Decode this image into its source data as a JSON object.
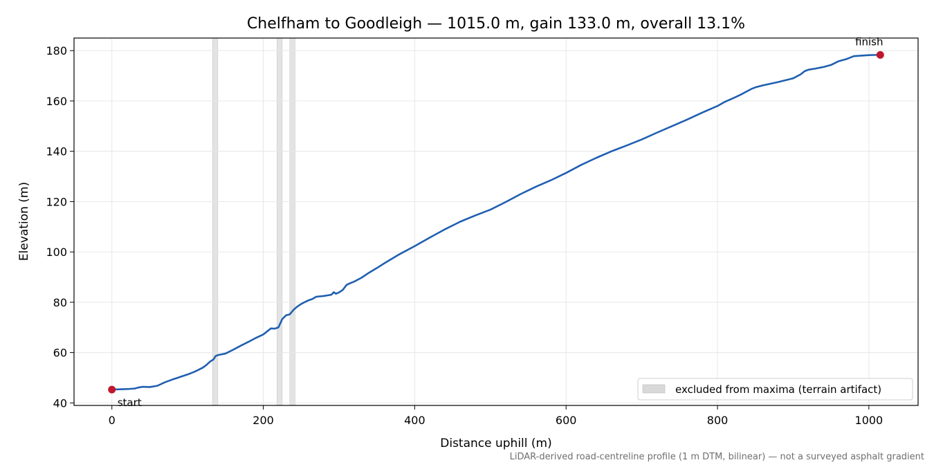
{
  "chart_data": {
    "type": "line",
    "title": "Chelfham to Goodleigh — 1015.0 m, gain 133.0 m, overall 13.1%",
    "xlabel": "Distance uphill (m)",
    "ylabel": "Elevation (m)",
    "xlim": [
      -50,
      1065
    ],
    "ylim": [
      39,
      185
    ],
    "xticks": [
      0,
      200,
      400,
      600,
      800,
      1000
    ],
    "yticks": [
      40,
      60,
      80,
      100,
      120,
      140,
      160,
      180
    ],
    "grid": true,
    "series": [
      {
        "color": "#1f5fb0",
        "x": [
          0,
          10,
          20,
          30,
          35,
          40,
          50,
          60,
          70,
          80,
          90,
          100,
          110,
          120,
          125,
          130,
          134,
          137,
          140,
          150,
          160,
          170,
          180,
          190,
          200,
          205,
          210,
          215,
          220,
          225,
          230,
          235,
          240,
          245,
          250,
          255,
          260,
          265,
          270,
          280,
          290,
          293,
          296,
          300,
          305,
          310,
          315,
          320,
          330,
          340,
          350,
          360,
          380,
          400,
          420,
          440,
          460,
          480,
          500,
          520,
          540,
          560,
          580,
          600,
          620,
          640,
          660,
          680,
          700,
          720,
          740,
          760,
          780,
          800,
          810,
          820,
          830,
          840,
          845,
          850,
          860,
          880,
          900,
          910,
          915,
          920,
          930,
          940,
          950,
          960,
          970,
          980,
          990,
          1000,
          1010,
          1015
        ],
        "y": [
          45.3,
          45.4,
          45.5,
          45.7,
          46.1,
          46.4,
          46.3,
          46.8,
          48.2,
          49.3,
          50.3,
          51.3,
          52.5,
          54.0,
          55.1,
          56.5,
          57.2,
          58.6,
          59.0,
          59.6,
          61.1,
          62.7,
          64.2,
          65.8,
          67.2,
          68.4,
          69.6,
          69.5,
          70.0,
          73.3,
          74.8,
          75.2,
          77.0,
          78.3,
          79.3,
          80.1,
          80.8,
          81.3,
          82.2,
          82.5,
          83.0,
          84.0,
          83.4,
          83.9,
          84.9,
          86.9,
          87.6,
          88.2,
          89.8,
          91.8,
          93.6,
          95.5,
          99.1,
          102.3,
          105.7,
          109.0,
          112.0,
          114.5,
          116.8,
          119.8,
          123.0,
          125.9,
          128.5,
          131.4,
          134.6,
          137.4,
          140.0,
          142.3,
          144.7,
          147.4,
          150.0,
          152.6,
          155.4,
          158.0,
          159.7,
          161.0,
          162.4,
          164.0,
          164.8,
          165.4,
          166.2,
          167.5,
          169.0,
          170.6,
          171.8,
          172.4,
          172.9,
          173.5,
          174.3,
          175.8,
          176.6,
          177.8,
          178.0,
          178.2,
          178.3,
          178.3
        ]
      }
    ],
    "excluded_bands": [
      [
        133,
        140
      ],
      [
        218,
        225
      ],
      [
        235,
        242
      ]
    ],
    "points": [
      {
        "label": "start",
        "x": 0,
        "y": 45.3,
        "color": "#c0162f"
      },
      {
        "label": "finish",
        "x": 1015,
        "y": 178.3,
        "color": "#c0162f"
      }
    ],
    "legend": {
      "position": "lower-right",
      "entry": "excluded from maxima (terrain artifact)",
      "swatch_color": "#d9d9d9"
    },
    "footnote": "LiDAR-derived road-centreline profile (1 m DTM, bilinear) — not a surveyed asphalt gradient"
  }
}
